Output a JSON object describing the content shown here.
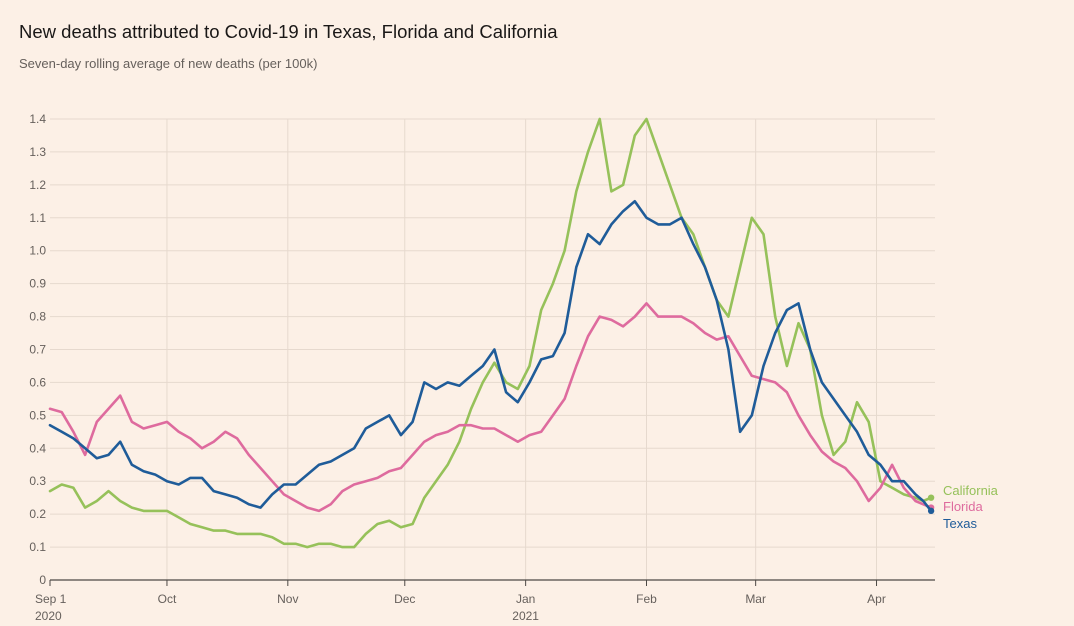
{
  "title": "New deaths attributed to Covid-19 in Texas, Florida and California",
  "subtitle": "Seven-day rolling average of new deaths (per 100k)",
  "chart_data": {
    "type": "line",
    "title": "New deaths attributed to Covid-19 in Texas, Florida and California",
    "subtitle": "Seven-day rolling average of new deaths (per 100k)",
    "xlabel": "",
    "ylabel": "",
    "x_unit": "days since 2020-09-01",
    "xlim": [
      0,
      227
    ],
    "ylim": [
      0,
      1.4
    ],
    "yticks": [
      0,
      0.1,
      0.2,
      0.3,
      0.4,
      0.5,
      0.6,
      0.7,
      0.8,
      0.9,
      1.0,
      1.1,
      1.2,
      1.3,
      1.4
    ],
    "ytick_labels": [
      "0",
      "0.1",
      "0.2",
      "0.3",
      "0.4",
      "0.5",
      "0.6",
      "0.7",
      "0.8",
      "0.9",
      "1.0",
      "1.1",
      "1.2",
      "1.3",
      "1.4"
    ],
    "xticks": [
      {
        "day": 0,
        "label": "Sep 1",
        "sublabel": "2020"
      },
      {
        "day": 30,
        "label": "Oct",
        "sublabel": ""
      },
      {
        "day": 61,
        "label": "Nov",
        "sublabel": ""
      },
      {
        "day": 91,
        "label": "Dec",
        "sublabel": ""
      },
      {
        "day": 122,
        "label": "Jan",
        "sublabel": "2021"
      },
      {
        "day": 153,
        "label": "Feb",
        "sublabel": ""
      },
      {
        "day": 181,
        "label": "Mar",
        "sublabel": ""
      },
      {
        "day": 212,
        "label": "Apr",
        "sublabel": ""
      }
    ],
    "grid": true,
    "legend_position": "right-end",
    "series": [
      {
        "name": "California",
        "color": "#96c15a",
        "x": [
          0,
          3,
          6,
          9,
          12,
          15,
          18,
          21,
          24,
          27,
          30,
          33,
          36,
          39,
          42,
          45,
          48,
          51,
          54,
          57,
          60,
          63,
          66,
          69,
          72,
          75,
          78,
          81,
          84,
          87,
          90,
          93,
          96,
          99,
          102,
          105,
          108,
          111,
          114,
          117,
          120,
          123,
          126,
          129,
          132,
          135,
          138,
          141,
          144,
          147,
          150,
          153,
          156,
          159,
          162,
          165,
          168,
          171,
          174,
          177,
          180,
          183,
          186,
          189,
          192,
          195,
          198,
          201,
          204,
          207,
          210,
          213,
          216,
          219,
          222,
          224,
          226
        ],
        "values": [
          0.27,
          0.29,
          0.28,
          0.22,
          0.24,
          0.27,
          0.24,
          0.22,
          0.21,
          0.21,
          0.21,
          0.19,
          0.17,
          0.16,
          0.15,
          0.15,
          0.14,
          0.14,
          0.14,
          0.13,
          0.11,
          0.11,
          0.1,
          0.11,
          0.11,
          0.1,
          0.1,
          0.14,
          0.17,
          0.18,
          0.16,
          0.17,
          0.25,
          0.3,
          0.35,
          0.42,
          0.52,
          0.6,
          0.66,
          0.6,
          0.58,
          0.65,
          0.82,
          0.9,
          1.0,
          1.18,
          1.3,
          1.4,
          1.18,
          1.2,
          1.35,
          1.4,
          1.3,
          1.2,
          1.1,
          1.05,
          0.95,
          0.85,
          0.8,
          0.95,
          1.1,
          1.05,
          0.8,
          0.65,
          0.78,
          0.7,
          0.5,
          0.38,
          0.42,
          0.54,
          0.48,
          0.3,
          0.28,
          0.26,
          0.25,
          0.24,
          0.25
        ]
      },
      {
        "name": "Florida",
        "color": "#de6b9e",
        "x": [
          0,
          3,
          6,
          9,
          12,
          15,
          18,
          21,
          24,
          27,
          30,
          33,
          36,
          39,
          42,
          45,
          48,
          51,
          54,
          57,
          60,
          63,
          66,
          69,
          72,
          75,
          78,
          81,
          84,
          87,
          90,
          93,
          96,
          99,
          102,
          105,
          108,
          111,
          114,
          117,
          120,
          123,
          126,
          129,
          132,
          135,
          138,
          141,
          144,
          147,
          150,
          153,
          156,
          159,
          162,
          165,
          168,
          171,
          174,
          177,
          180,
          183,
          186,
          189,
          192,
          195,
          198,
          201,
          204,
          207,
          210,
          213,
          216,
          219,
          222,
          224,
          226
        ],
        "values": [
          0.52,
          0.51,
          0.45,
          0.38,
          0.48,
          0.52,
          0.56,
          0.48,
          0.46,
          0.47,
          0.48,
          0.45,
          0.43,
          0.4,
          0.42,
          0.45,
          0.43,
          0.38,
          0.34,
          0.3,
          0.26,
          0.24,
          0.22,
          0.21,
          0.23,
          0.27,
          0.29,
          0.3,
          0.31,
          0.33,
          0.34,
          0.38,
          0.42,
          0.44,
          0.45,
          0.47,
          0.47,
          0.46,
          0.46,
          0.44,
          0.42,
          0.44,
          0.45,
          0.5,
          0.55,
          0.65,
          0.74,
          0.8,
          0.79,
          0.77,
          0.8,
          0.84,
          0.8,
          0.8,
          0.8,
          0.78,
          0.75,
          0.73,
          0.74,
          0.68,
          0.62,
          0.61,
          0.6,
          0.57,
          0.5,
          0.44,
          0.39,
          0.36,
          0.34,
          0.3,
          0.24,
          0.28,
          0.35,
          0.28,
          0.24,
          0.23,
          0.22
        ]
      },
      {
        "name": "Texas",
        "color": "#1f5c99",
        "x": [
          0,
          3,
          6,
          9,
          12,
          15,
          18,
          21,
          24,
          27,
          30,
          33,
          36,
          39,
          42,
          45,
          48,
          51,
          54,
          57,
          60,
          63,
          66,
          69,
          72,
          75,
          78,
          81,
          84,
          87,
          90,
          93,
          96,
          99,
          102,
          105,
          108,
          111,
          114,
          117,
          120,
          123,
          126,
          129,
          132,
          135,
          138,
          141,
          144,
          147,
          150,
          153,
          156,
          159,
          162,
          165,
          168,
          171,
          174,
          177,
          180,
          183,
          186,
          189,
          192,
          195,
          198,
          201,
          204,
          207,
          210,
          213,
          216,
          219,
          222,
          224,
          226
        ],
        "values": [
          0.47,
          0.45,
          0.43,
          0.4,
          0.37,
          0.38,
          0.42,
          0.35,
          0.33,
          0.32,
          0.3,
          0.29,
          0.31,
          0.31,
          0.27,
          0.26,
          0.25,
          0.23,
          0.22,
          0.26,
          0.29,
          0.29,
          0.32,
          0.35,
          0.36,
          0.38,
          0.4,
          0.46,
          0.48,
          0.5,
          0.44,
          0.48,
          0.6,
          0.58,
          0.6,
          0.59,
          0.62,
          0.65,
          0.7,
          0.57,
          0.54,
          0.6,
          0.67,
          0.68,
          0.75,
          0.95,
          1.05,
          1.02,
          1.08,
          1.12,
          1.15,
          1.1,
          1.08,
          1.08,
          1.1,
          1.02,
          0.95,
          0.85,
          0.7,
          0.45,
          0.5,
          0.65,
          0.75,
          0.82,
          0.84,
          0.7,
          0.6,
          0.55,
          0.5,
          0.45,
          0.38,
          0.35,
          0.3,
          0.3,
          0.26,
          0.24,
          0.21
        ]
      }
    ]
  }
}
